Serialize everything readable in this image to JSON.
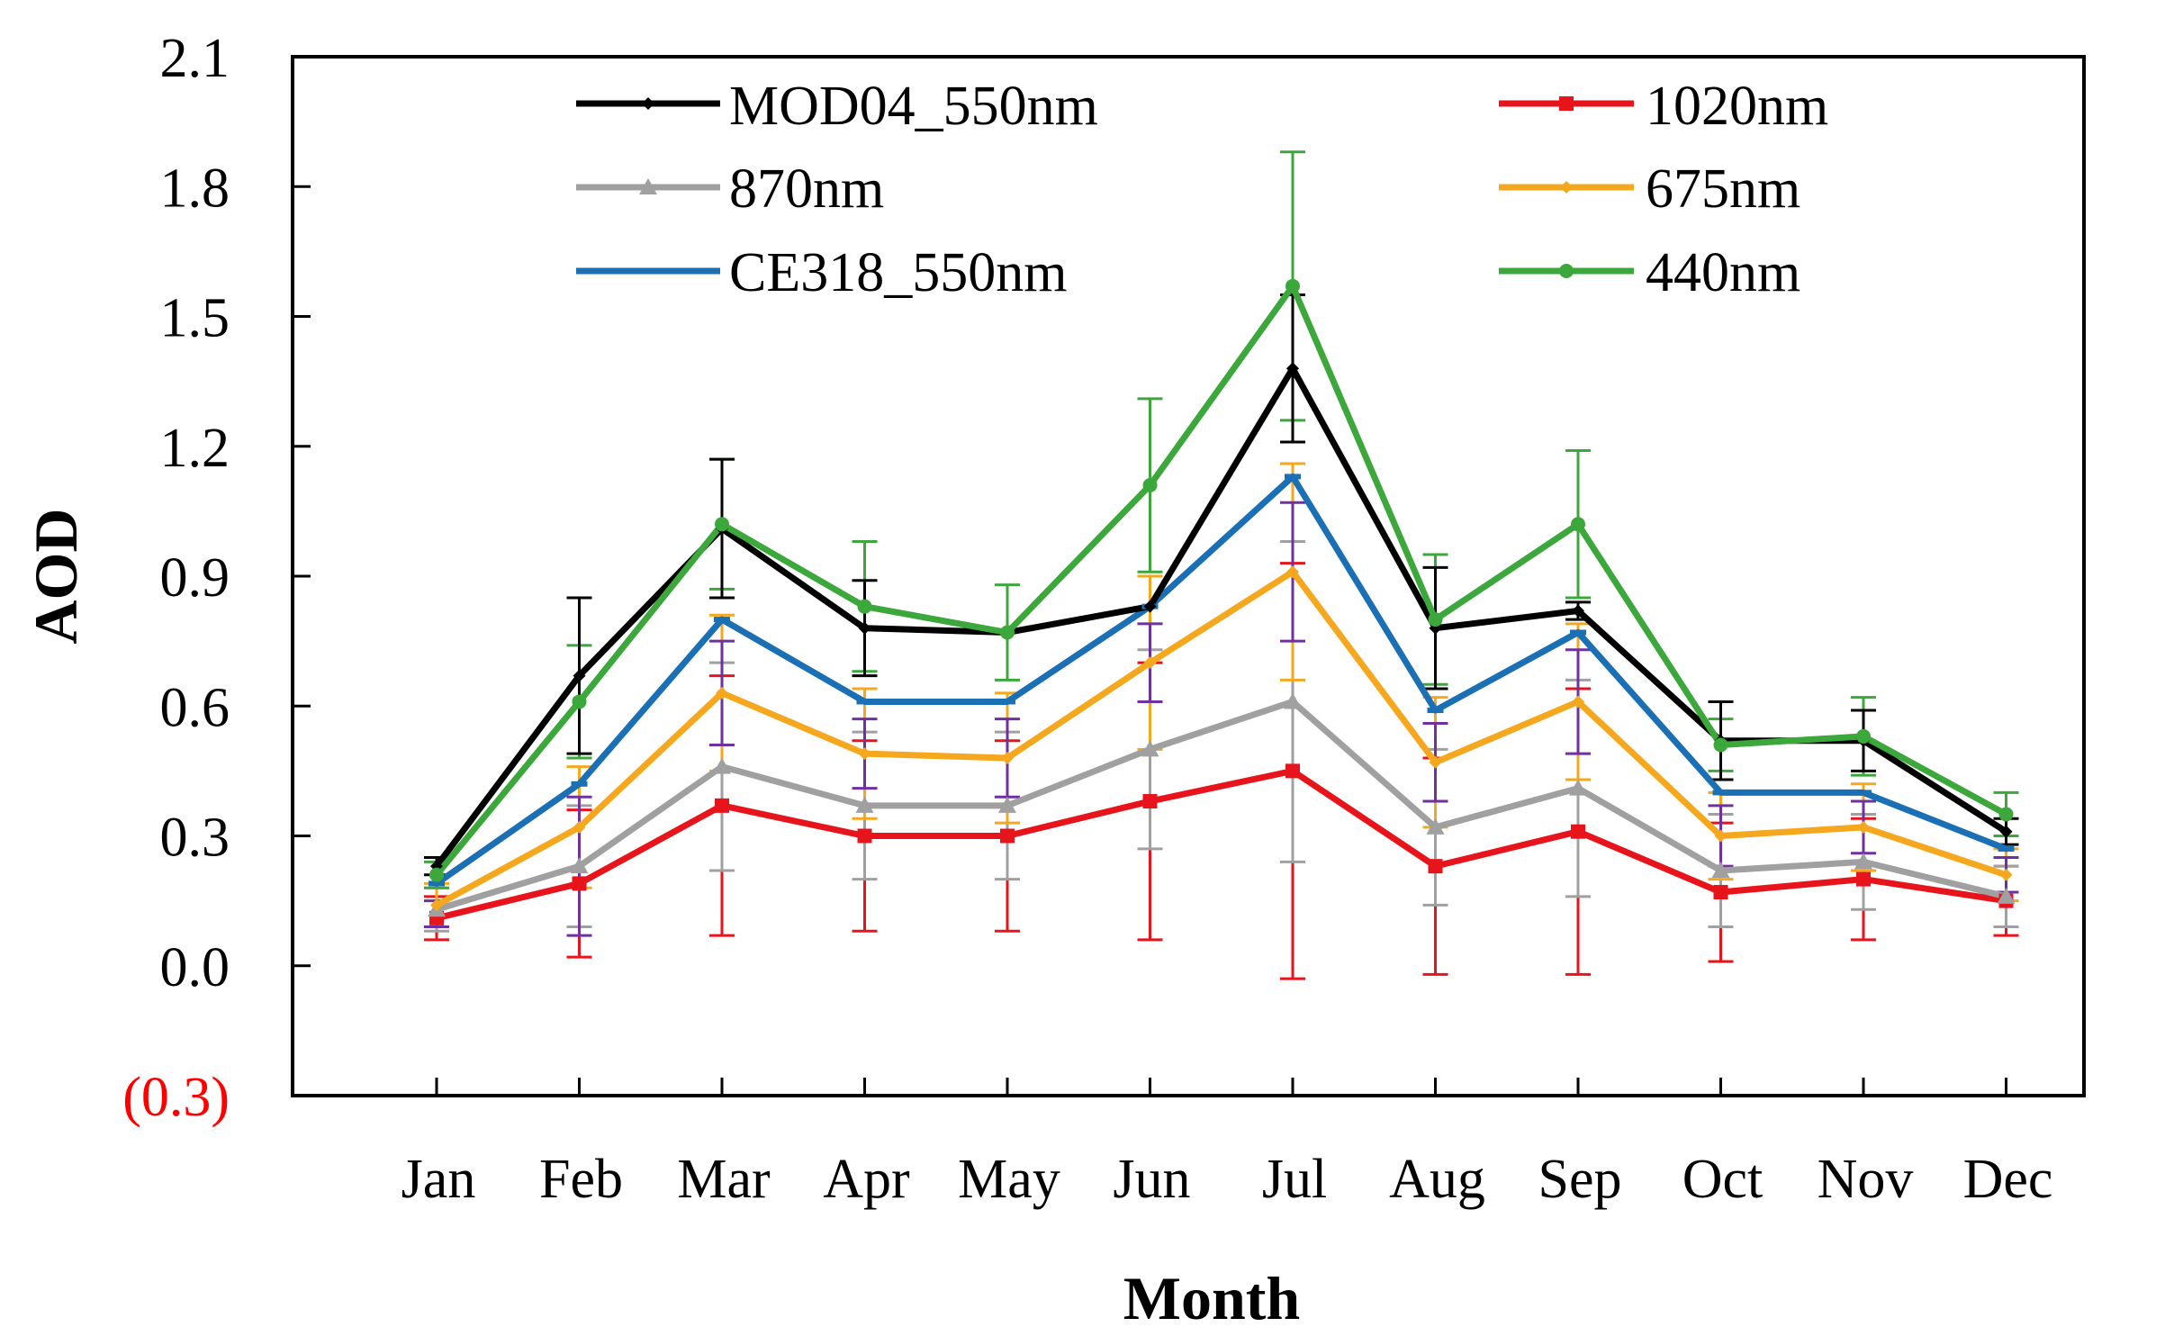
{
  "chart_data": {
    "type": "line",
    "title": "",
    "xlabel": "Month",
    "ylabel": "AOD",
    "categories": [
      "Jan",
      "Feb",
      "Mar",
      "Apr",
      "May",
      "Jun",
      "Jul",
      "Aug",
      "Sep",
      "Oct",
      "Nov",
      "Dec"
    ],
    "ylim": [
      -0.3,
      2.1
    ],
    "yticks": [
      {
        "label": "2.1",
        "value": 2.1
      },
      {
        "label": "1.8",
        "value": 1.8
      },
      {
        "label": "1.5",
        "value": 1.5
      },
      {
        "label": "1.2",
        "value": 1.2
      },
      {
        "label": "0.9",
        "value": 0.9
      },
      {
        "label": "0.6",
        "value": 0.6
      },
      {
        "label": "0.3",
        "value": 0.3
      },
      {
        "label": "0.0",
        "value": 0.0
      },
      {
        "label": "(0.3)",
        "value": -0.3
      }
    ],
    "negative_tick_color": "#ff0000",
    "grid": false,
    "legend_position": "top",
    "series": [
      {
        "name": "MOD04_550nm",
        "color": "#000000",
        "marker": "diamond",
        "values": [
          0.23,
          0.67,
          1.01,
          0.78,
          0.77,
          0.83,
          1.38,
          0.78,
          0.82,
          0.52,
          0.52,
          0.31
        ],
        "error": [
          0.02,
          0.18,
          0.16,
          0.11,
          0.0,
          0.0,
          0.17,
          0.14,
          0.02,
          0.09,
          0.07,
          0.03
        ]
      },
      {
        "name": "1020nm",
        "color": "#e8141b",
        "marker": "square",
        "values": [
          0.11,
          0.19,
          0.37,
          0.3,
          0.3,
          0.38,
          0.45,
          0.23,
          0.31,
          0.17,
          0.2,
          0.15
        ],
        "error": [
          0.05,
          0.17,
          0.3,
          0.22,
          0.22,
          0.32,
          0.48,
          0.25,
          0.33,
          0.16,
          0.14,
          0.08
        ]
      },
      {
        "name": "870nm",
        "color": "#a0a0a0",
        "marker": "triangle",
        "values": [
          0.13,
          0.23,
          0.46,
          0.37,
          0.37,
          0.5,
          0.61,
          0.32,
          0.41,
          0.22,
          0.24,
          0.16
        ],
        "error": [
          0.05,
          0.14,
          0.24,
          0.17,
          0.17,
          0.23,
          0.37,
          0.18,
          0.25,
          0.13,
          0.11,
          0.07
        ]
      },
      {
        "name": "675nm",
        "color": "#f5a81e",
        "marker": "diamond",
        "values": [
          0.14,
          0.32,
          0.63,
          0.49,
          0.48,
          0.7,
          0.91,
          0.47,
          0.61,
          0.3,
          0.32,
          0.21
        ],
        "error": [
          0.05,
          0.14,
          0.18,
          0.15,
          0.15,
          0.2,
          0.25,
          0.15,
          0.18,
          0.1,
          0.1,
          0.06
        ]
      },
      {
        "name": "CE318_550nm",
        "color": "#1a6fb5",
        "marker": "dash",
        "values": [
          0.19,
          0.42,
          0.8,
          0.61,
          0.61,
          0.83,
          1.13,
          0.59,
          0.77,
          0.4,
          0.4,
          0.27
        ],
        "error": [
          0.0,
          0.0,
          0.0,
          0.0,
          0.0,
          0.0,
          0.0,
          0.0,
          0.0,
          0.0,
          0.0,
          0.0
        ]
      },
      {
        "name": "440nm",
        "color": "#3ca83c",
        "marker": "circle",
        "values": [
          0.21,
          0.61,
          1.02,
          0.83,
          0.77,
          1.11,
          1.57,
          0.8,
          1.02,
          0.51,
          0.53,
          0.35
        ],
        "error": [
          0.03,
          0.13,
          0.15,
          0.15,
          0.11,
          0.2,
          0.31,
          0.15,
          0.17,
          0.06,
          0.09,
          0.05
        ]
      }
    ],
    "extra_error_bars": {
      "color": "#7030a0",
      "values": [
        0.12,
        0.23,
        0.63,
        0.49,
        0.48,
        0.7,
        0.91,
        0.47,
        0.61,
        0.3,
        0.32,
        0.21
      ],
      "error": [
        0.03,
        0.16,
        0.12,
        0.08,
        0.09,
        0.09,
        0.16,
        0.09,
        0.12,
        0.07,
        0.06,
        0.04
      ]
    }
  }
}
